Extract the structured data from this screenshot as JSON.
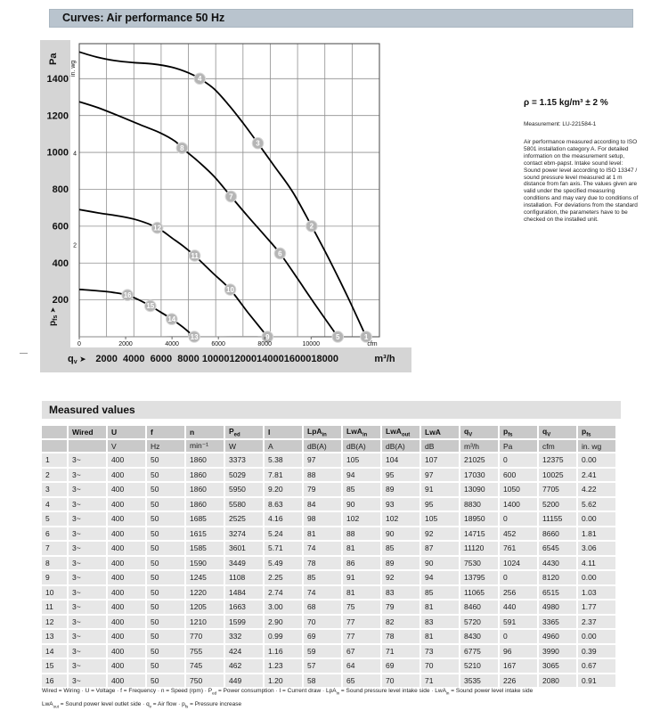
{
  "header": {
    "title": "Curves: Air performance 50 Hz"
  },
  "side_note": {
    "density_line": "ρ = 1.15 kg/m³ ± 2 %",
    "measurement_line": "Measurement: LU-221584-1",
    "paragraph": "Air performance measured according to ISO 5801 installation category A. For detailed information on the measurement setup, contact ebm-papst. Intake sound level: Sound power level according to ISO 13347 / sound pressure level measured at 1 m distance from fan axis. The values given are valid under the specified measuring conditions and may vary due to conditions of installation. For deviations from the standard configuration, the parameters have to be checked on the installed unit."
  },
  "colors": {
    "title_bar_bg": "#b9c4ce",
    "band_bg": "#d5d5d5",
    "section_bg": "#e0e0e0",
    "header_cell_bg": "#c9c9c9",
    "row_bg": "#e7e7e7",
    "grid_line": "#8f8f8f",
    "plot_border": "#555555",
    "fan_curve": "#000000",
    "system_curve": "#9b9b9b",
    "marker_fill": "#b5b5b5",
    "marker_ring": "#d8d8d8",
    "marker_text": "#ffffff"
  },
  "chart_data": {
    "type": "line",
    "title": "Air performance 50 Hz",
    "x_axis_bold": {
      "label": "q",
      "label_sub": "v",
      "arrow": "➤",
      "unit": "m³/h",
      "ticks": [
        2000,
        4000,
        6000,
        8000,
        10000,
        12000,
        14000,
        16000,
        18000
      ],
      "range_m3h": [
        0,
        22000
      ]
    },
    "x_axis_inner": {
      "unit": "cfm",
      "ticks": [
        0,
        2000,
        4000,
        6000,
        8000,
        10000
      ],
      "m3h_per_cfm": 1.699
    },
    "y_axis": {
      "unit": "Pa",
      "label": "p",
      "label_sub": "fs",
      "arrow": "➤",
      "ticks": [
        200,
        400,
        600,
        800,
        1000,
        1200,
        1400
      ],
      "range_pa": [
        0,
        1590
      ]
    },
    "y_axis_secondary": {
      "unit": "in. wg",
      "ticks": [
        {
          "label": "2",
          "pa": 498
        },
        {
          "label": "4",
          "pa": 996
        }
      ]
    },
    "fan_curves": [
      {
        "name": "fan-curve-1860-rpm",
        "points": [
          [
            0,
            1545
          ],
          [
            1300,
            1517
          ],
          [
            2600,
            1498
          ],
          [
            4000,
            1487
          ],
          [
            5400,
            1480
          ],
          [
            6800,
            1462
          ],
          [
            8000,
            1432
          ],
          [
            8830,
            1400
          ],
          [
            9900,
            1343
          ],
          [
            11000,
            1253
          ],
          [
            12050,
            1155
          ],
          [
            13090,
            1050
          ],
          [
            14300,
            925
          ],
          [
            15650,
            785
          ],
          [
            17030,
            600
          ],
          [
            18350,
            415
          ],
          [
            19700,
            212
          ],
          [
            21025,
            0
          ]
        ]
      },
      {
        "name": "fan-curve-1685-rpm",
        "points": [
          [
            0,
            1275
          ],
          [
            1400,
            1242
          ],
          [
            2900,
            1198
          ],
          [
            4400,
            1152
          ],
          [
            5900,
            1107
          ],
          [
            7000,
            1062
          ],
          [
            7530,
            1024
          ],
          [
            8700,
            952
          ],
          [
            9900,
            868
          ],
          [
            11120,
            761
          ],
          [
            12300,
            658
          ],
          [
            13500,
            557
          ],
          [
            14715,
            452
          ],
          [
            16000,
            315
          ],
          [
            17500,
            152
          ],
          [
            18950,
            0
          ]
        ]
      },
      {
        "name": "fan-curve-1245-rpm",
        "points": [
          [
            0,
            690
          ],
          [
            1400,
            672
          ],
          [
            2900,
            655
          ],
          [
            4300,
            632
          ],
          [
            5720,
            591
          ],
          [
            6900,
            530
          ],
          [
            7700,
            487
          ],
          [
            8460,
            440
          ],
          [
            9800,
            345
          ],
          [
            11065,
            256
          ],
          [
            12400,
            128
          ],
          [
            13795,
            0
          ]
        ]
      },
      {
        "name": "fan-curve-770-rpm",
        "points": [
          [
            0,
            257
          ],
          [
            1400,
            249
          ],
          [
            2500,
            240
          ],
          [
            3535,
            226
          ],
          [
            4400,
            199
          ],
          [
            5210,
            167
          ],
          [
            6000,
            132
          ],
          [
            6775,
            96
          ],
          [
            7600,
            52
          ],
          [
            8430,
            0
          ]
        ]
      }
    ],
    "system_curves": [
      {
        "name": "system-curve-high",
        "k": 1.7956e-08,
        "q_end": 8830
      },
      {
        "name": "system-curve-mid",
        "k": 6.129e-09,
        "q_end": 13090
      },
      {
        "name": "system-curve-low",
        "k": 2.069e-09,
        "q_end": 17030
      }
    ],
    "operating_points": [
      {
        "id": 1,
        "qv": 21025,
        "pfs": 0
      },
      {
        "id": 2,
        "qv": 17030,
        "pfs": 600
      },
      {
        "id": 3,
        "qv": 13090,
        "pfs": 1050
      },
      {
        "id": 4,
        "qv": 8830,
        "pfs": 1400
      },
      {
        "id": 5,
        "qv": 18950,
        "pfs": 0
      },
      {
        "id": 6,
        "qv": 14715,
        "pfs": 452
      },
      {
        "id": 7,
        "qv": 11120,
        "pfs": 761
      },
      {
        "id": 8,
        "qv": 7530,
        "pfs": 1024
      },
      {
        "id": 9,
        "qv": 13795,
        "pfs": 0
      },
      {
        "id": 10,
        "qv": 11065,
        "pfs": 256
      },
      {
        "id": 11,
        "qv": 8460,
        "pfs": 440
      },
      {
        "id": 12,
        "qv": 5720,
        "pfs": 591
      },
      {
        "id": 13,
        "qv": 8430,
        "pfs": 0
      },
      {
        "id": 14,
        "qv": 6775,
        "pfs": 96
      },
      {
        "id": 15,
        "qv": 5210,
        "pfs": 167
      },
      {
        "id": 16,
        "qv": 3535,
        "pfs": 226
      }
    ]
  },
  "table": {
    "section_title": "Measured values",
    "columns": [
      {
        "label": "",
        "unit": ""
      },
      {
        "label": "Wired",
        "unit": ""
      },
      {
        "label": "U",
        "unit": "V"
      },
      {
        "label": "f",
        "unit": "Hz"
      },
      {
        "label": "n",
        "unit": "min⁻¹"
      },
      {
        "label": "P",
        "sub": "ed",
        "unit": "W"
      },
      {
        "label": "I",
        "unit": "A"
      },
      {
        "label": "LpA",
        "sub": "in",
        "unit": "dB(A)"
      },
      {
        "label": "LwA",
        "sub": "in",
        "unit": "dB(A)"
      },
      {
        "label": "LwA",
        "sub": "out",
        "unit": "dB(A)"
      },
      {
        "label": "LwA",
        "unit": "dB"
      },
      {
        "label": "q",
        "sub": "V",
        "unit": "m³/h"
      },
      {
        "label": "p",
        "sub": "fs",
        "unit": "Pa"
      },
      {
        "label": "q",
        "sub": "V",
        "unit": "cfm"
      },
      {
        "label": "p",
        "sub": "fs",
        "unit": "in. wg"
      }
    ],
    "rows": [
      [
        "1",
        "3~",
        "400",
        "50",
        "1860",
        "3373",
        "5.38",
        "97",
        "105",
        "104",
        "107",
        "21025",
        "0",
        "12375",
        "0.00"
      ],
      [
        "2",
        "3~",
        "400",
        "50",
        "1860",
        "5029",
        "7.81",
        "88",
        "94",
        "95",
        "97",
        "17030",
        "600",
        "10025",
        "2.41"
      ],
      [
        "3",
        "3~",
        "400",
        "50",
        "1860",
        "5950",
        "9.20",
        "79",
        "85",
        "89",
        "91",
        "13090",
        "1050",
        "7705",
        "4.22"
      ],
      [
        "4",
        "3~",
        "400",
        "50",
        "1860",
        "5580",
        "8.63",
        "84",
        "90",
        "93",
        "95",
        "8830",
        "1400",
        "5200",
        "5.62"
      ],
      [
        "5",
        "3~",
        "400",
        "50",
        "1685",
        "2525",
        "4.16",
        "98",
        "102",
        "102",
        "105",
        "18950",
        "0",
        "11155",
        "0.00"
      ],
      [
        "6",
        "3~",
        "400",
        "50",
        "1615",
        "3274",
        "5.24",
        "81",
        "88",
        "90",
        "92",
        "14715",
        "452",
        "8660",
        "1.81"
      ],
      [
        "7",
        "3~",
        "400",
        "50",
        "1585",
        "3601",
        "5.71",
        "74",
        "81",
        "85",
        "87",
        "11120",
        "761",
        "6545",
        "3.06"
      ],
      [
        "8",
        "3~",
        "400",
        "50",
        "1590",
        "3449",
        "5.49",
        "78",
        "86",
        "89",
        "90",
        "7530",
        "1024",
        "4430",
        "4.11"
      ],
      [
        "9",
        "3~",
        "400",
        "50",
        "1245",
        "1108",
        "2.25",
        "85",
        "91",
        "92",
        "94",
        "13795",
        "0",
        "8120",
        "0.00"
      ],
      [
        "10",
        "3~",
        "400",
        "50",
        "1220",
        "1484",
        "2.74",
        "74",
        "81",
        "83",
        "85",
        "11065",
        "256",
        "6515",
        "1.03"
      ],
      [
        "11",
        "3~",
        "400",
        "50",
        "1205",
        "1663",
        "3.00",
        "68",
        "75",
        "79",
        "81",
        "8460",
        "440",
        "4980",
        "1.77"
      ],
      [
        "12",
        "3~",
        "400",
        "50",
        "1210",
        "1599",
        "2.90",
        "70",
        "77",
        "82",
        "83",
        "5720",
        "591",
        "3365",
        "2.37"
      ],
      [
        "13",
        "3~",
        "400",
        "50",
        "770",
        "332",
        "0.99",
        "69",
        "77",
        "78",
        "81",
        "8430",
        "0",
        "4960",
        "0.00"
      ],
      [
        "14",
        "3~",
        "400",
        "50",
        "755",
        "424",
        "1.16",
        "59",
        "67",
        "71",
        "73",
        "6775",
        "96",
        "3990",
        "0.39"
      ],
      [
        "15",
        "3~",
        "400",
        "50",
        "745",
        "462",
        "1.23",
        "57",
        "64",
        "69",
        "70",
        "5210",
        "167",
        "3065",
        "0.67"
      ],
      [
        "16",
        "3~",
        "400",
        "50",
        "750",
        "449",
        "1.20",
        "58",
        "65",
        "70",
        "71",
        "3535",
        "226",
        "2080",
        "0.91"
      ]
    ]
  },
  "legend": {
    "line1": [
      {
        "t": "Wired = Wiring · U = Voltage · f = Frequency · n = Speed (rpm) · P"
      },
      {
        "sub": "ed"
      },
      {
        "t": " = Power consumption · I = Current draw · LpA"
      },
      {
        "sub": "in"
      },
      {
        "t": " = Sound pressure level intake side · LwA"
      },
      {
        "sub": "in"
      },
      {
        "t": " = Sound power level intake side"
      }
    ],
    "line2": [
      {
        "t": "LwA"
      },
      {
        "sub": "out"
      },
      {
        "t": " = Sound power level outlet side · q"
      },
      {
        "sub": "v"
      },
      {
        "t": " = Air flow · p"
      },
      {
        "sub": "fs"
      },
      {
        "t": " = Pressure increase"
      }
    ]
  }
}
